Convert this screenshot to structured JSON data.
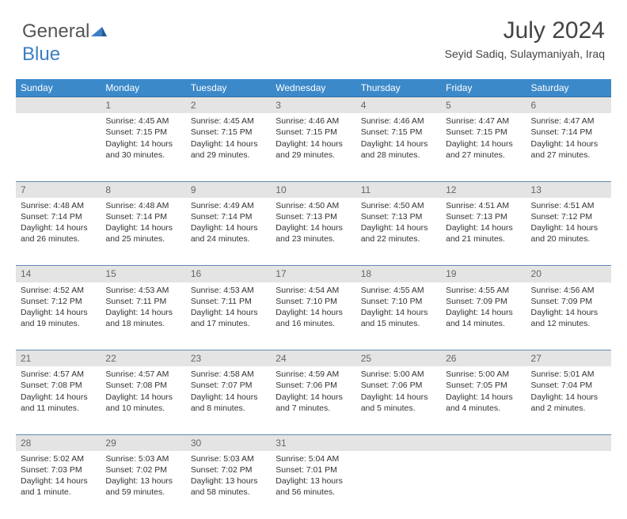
{
  "logo": {
    "text1": "General",
    "text2": "Blue"
  },
  "header": {
    "month_title": "July 2024",
    "location": "Seyid Sadiq, Sulaymaniyah, Iraq"
  },
  "weekdays": [
    "Sunday",
    "Monday",
    "Tuesday",
    "Wednesday",
    "Thursday",
    "Friday",
    "Saturday"
  ],
  "colors": {
    "header_bg": "#3b89c9",
    "daynum_bg": "#e4e4e4",
    "border": "#5e8bb5"
  },
  "weeks": [
    {
      "nums": [
        "",
        "1",
        "2",
        "3",
        "4",
        "5",
        "6"
      ],
      "cells": [
        {
          "sunrise": "",
          "sunset": "",
          "daylight": ""
        },
        {
          "sunrise": "Sunrise: 4:45 AM",
          "sunset": "Sunset: 7:15 PM",
          "daylight": "Daylight: 14 hours and 30 minutes."
        },
        {
          "sunrise": "Sunrise: 4:45 AM",
          "sunset": "Sunset: 7:15 PM",
          "daylight": "Daylight: 14 hours and 29 minutes."
        },
        {
          "sunrise": "Sunrise: 4:46 AM",
          "sunset": "Sunset: 7:15 PM",
          "daylight": "Daylight: 14 hours and 29 minutes."
        },
        {
          "sunrise": "Sunrise: 4:46 AM",
          "sunset": "Sunset: 7:15 PM",
          "daylight": "Daylight: 14 hours and 28 minutes."
        },
        {
          "sunrise": "Sunrise: 4:47 AM",
          "sunset": "Sunset: 7:15 PM",
          "daylight": "Daylight: 14 hours and 27 minutes."
        },
        {
          "sunrise": "Sunrise: 4:47 AM",
          "sunset": "Sunset: 7:14 PM",
          "daylight": "Daylight: 14 hours and 27 minutes."
        }
      ]
    },
    {
      "nums": [
        "7",
        "8",
        "9",
        "10",
        "11",
        "12",
        "13"
      ],
      "cells": [
        {
          "sunrise": "Sunrise: 4:48 AM",
          "sunset": "Sunset: 7:14 PM",
          "daylight": "Daylight: 14 hours and 26 minutes."
        },
        {
          "sunrise": "Sunrise: 4:48 AM",
          "sunset": "Sunset: 7:14 PM",
          "daylight": "Daylight: 14 hours and 25 minutes."
        },
        {
          "sunrise": "Sunrise: 4:49 AM",
          "sunset": "Sunset: 7:14 PM",
          "daylight": "Daylight: 14 hours and 24 minutes."
        },
        {
          "sunrise": "Sunrise: 4:50 AM",
          "sunset": "Sunset: 7:13 PM",
          "daylight": "Daylight: 14 hours and 23 minutes."
        },
        {
          "sunrise": "Sunrise: 4:50 AM",
          "sunset": "Sunset: 7:13 PM",
          "daylight": "Daylight: 14 hours and 22 minutes."
        },
        {
          "sunrise": "Sunrise: 4:51 AM",
          "sunset": "Sunset: 7:13 PM",
          "daylight": "Daylight: 14 hours and 21 minutes."
        },
        {
          "sunrise": "Sunrise: 4:51 AM",
          "sunset": "Sunset: 7:12 PM",
          "daylight": "Daylight: 14 hours and 20 minutes."
        }
      ]
    },
    {
      "nums": [
        "14",
        "15",
        "16",
        "17",
        "18",
        "19",
        "20"
      ],
      "cells": [
        {
          "sunrise": "Sunrise: 4:52 AM",
          "sunset": "Sunset: 7:12 PM",
          "daylight": "Daylight: 14 hours and 19 minutes."
        },
        {
          "sunrise": "Sunrise: 4:53 AM",
          "sunset": "Sunset: 7:11 PM",
          "daylight": "Daylight: 14 hours and 18 minutes."
        },
        {
          "sunrise": "Sunrise: 4:53 AM",
          "sunset": "Sunset: 7:11 PM",
          "daylight": "Daylight: 14 hours and 17 minutes."
        },
        {
          "sunrise": "Sunrise: 4:54 AM",
          "sunset": "Sunset: 7:10 PM",
          "daylight": "Daylight: 14 hours and 16 minutes."
        },
        {
          "sunrise": "Sunrise: 4:55 AM",
          "sunset": "Sunset: 7:10 PM",
          "daylight": "Daylight: 14 hours and 15 minutes."
        },
        {
          "sunrise": "Sunrise: 4:55 AM",
          "sunset": "Sunset: 7:09 PM",
          "daylight": "Daylight: 14 hours and 14 minutes."
        },
        {
          "sunrise": "Sunrise: 4:56 AM",
          "sunset": "Sunset: 7:09 PM",
          "daylight": "Daylight: 14 hours and 12 minutes."
        }
      ]
    },
    {
      "nums": [
        "21",
        "22",
        "23",
        "24",
        "25",
        "26",
        "27"
      ],
      "cells": [
        {
          "sunrise": "Sunrise: 4:57 AM",
          "sunset": "Sunset: 7:08 PM",
          "daylight": "Daylight: 14 hours and 11 minutes."
        },
        {
          "sunrise": "Sunrise: 4:57 AM",
          "sunset": "Sunset: 7:08 PM",
          "daylight": "Daylight: 14 hours and 10 minutes."
        },
        {
          "sunrise": "Sunrise: 4:58 AM",
          "sunset": "Sunset: 7:07 PM",
          "daylight": "Daylight: 14 hours and 8 minutes."
        },
        {
          "sunrise": "Sunrise: 4:59 AM",
          "sunset": "Sunset: 7:06 PM",
          "daylight": "Daylight: 14 hours and 7 minutes."
        },
        {
          "sunrise": "Sunrise: 5:00 AM",
          "sunset": "Sunset: 7:06 PM",
          "daylight": "Daylight: 14 hours and 5 minutes."
        },
        {
          "sunrise": "Sunrise: 5:00 AM",
          "sunset": "Sunset: 7:05 PM",
          "daylight": "Daylight: 14 hours and 4 minutes."
        },
        {
          "sunrise": "Sunrise: 5:01 AM",
          "sunset": "Sunset: 7:04 PM",
          "daylight": "Daylight: 14 hours and 2 minutes."
        }
      ]
    },
    {
      "nums": [
        "28",
        "29",
        "30",
        "31",
        "",
        "",
        ""
      ],
      "cells": [
        {
          "sunrise": "Sunrise: 5:02 AM",
          "sunset": "Sunset: 7:03 PM",
          "daylight": "Daylight: 14 hours and 1 minute."
        },
        {
          "sunrise": "Sunrise: 5:03 AM",
          "sunset": "Sunset: 7:02 PM",
          "daylight": "Daylight: 13 hours and 59 minutes."
        },
        {
          "sunrise": "Sunrise: 5:03 AM",
          "sunset": "Sunset: 7:02 PM",
          "daylight": "Daylight: 13 hours and 58 minutes."
        },
        {
          "sunrise": "Sunrise: 5:04 AM",
          "sunset": "Sunset: 7:01 PM",
          "daylight": "Daylight: 13 hours and 56 minutes."
        },
        {
          "sunrise": "",
          "sunset": "",
          "daylight": ""
        },
        {
          "sunrise": "",
          "sunset": "",
          "daylight": ""
        },
        {
          "sunrise": "",
          "sunset": "",
          "daylight": ""
        }
      ]
    }
  ]
}
